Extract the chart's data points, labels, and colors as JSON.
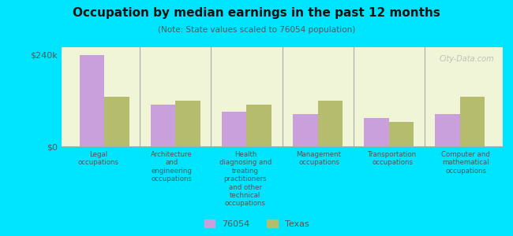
{
  "title": "Occupation by median earnings in the past 12 months",
  "subtitle": "(Note: State values scaled to 76054 population)",
  "categories": [
    "Legal\noccupations",
    "Architecture\nand\nengineering\noccupations",
    "Health\ndiagnosing and\ntreating\npractitioners\nand other\ntechnical\noccupations",
    "Management\noccupations",
    "Transportation\noccupations",
    "Computer and\nmathematical\noccupations"
  ],
  "values_76054": [
    240000,
    110000,
    90000,
    85000,
    75000,
    85000
  ],
  "values_texas": [
    130000,
    120000,
    110000,
    120000,
    65000,
    130000
  ],
  "color_76054": "#c9a0dc",
  "color_texas": "#b5bc6e",
  "ylim": [
    0,
    260000
  ],
  "yticks": [
    0,
    240000
  ],
  "ytick_labels": [
    "$0",
    "$240k"
  ],
  "background_color": "#f0f5d8",
  "outer_background": "#00e5ff",
  "legend_label_76054": "76054",
  "legend_label_texas": "Texas",
  "watermark": "City-Data.com"
}
